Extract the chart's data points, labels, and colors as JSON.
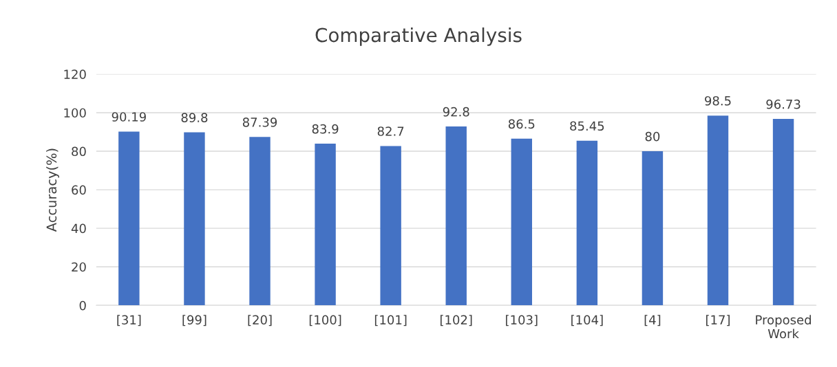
{
  "chart_data": {
    "type": "bar",
    "title": "Comparative Analysis",
    "ylabel": "Accuracy(%)",
    "categories": [
      "[31]",
      "[99]",
      "[20]",
      "[100]",
      "[101]",
      "[102]",
      "[103]",
      "[104]",
      "[4]",
      "[17]",
      "Proposed Work"
    ],
    "values": [
      90.19,
      89.8,
      87.39,
      83.9,
      82.7,
      92.8,
      86.5,
      85.45,
      80,
      98.5,
      96.73
    ],
    "color": "#4472c4",
    "ylim": [
      0,
      120
    ],
    "yticks": [
      0,
      20,
      40,
      60,
      80,
      100,
      120
    ],
    "grid": "y",
    "data_labels": true
  }
}
